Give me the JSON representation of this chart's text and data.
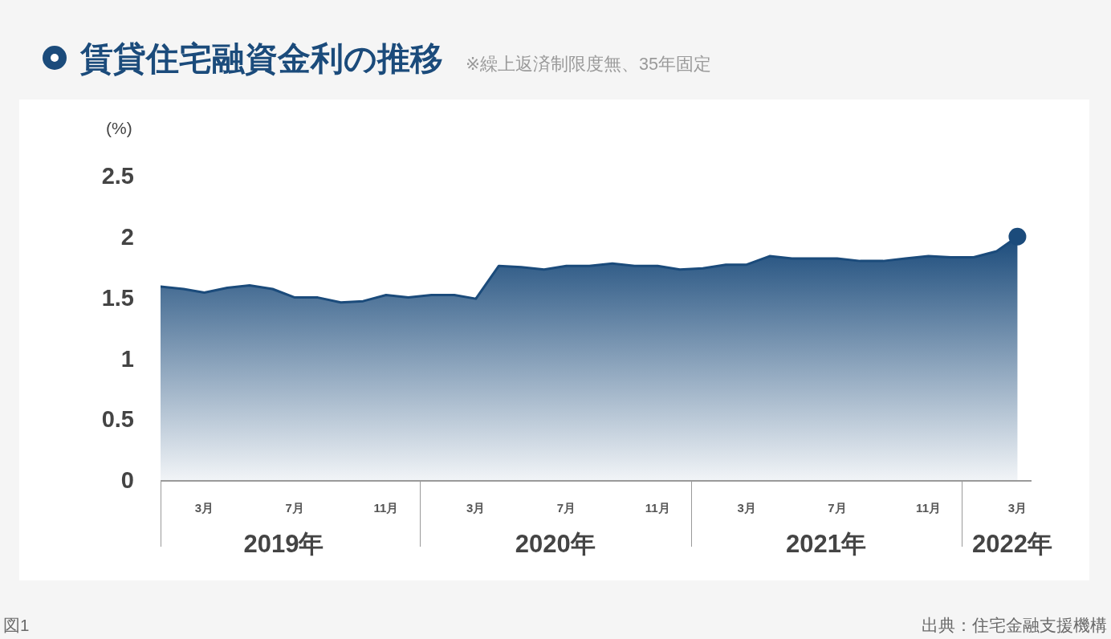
{
  "chart_data": {
    "type": "area",
    "title": "賃貸住宅融資金利の推移",
    "subtitle": "※繰上返済制限度無、35年固定",
    "ylabel": "(%)",
    "annotations": [
      "図1",
      "出典：住宅金融支援機構"
    ],
    "x": [
      "2019-01",
      "2019-02",
      "2019-03",
      "2019-04",
      "2019-05",
      "2019-06",
      "2019-07",
      "2019-08",
      "2019-09",
      "2019-10",
      "2019-11",
      "2019-12",
      "2020-01",
      "2020-02",
      "2020-03",
      "2020-04",
      "2020-05",
      "2020-06",
      "2020-07",
      "2020-08",
      "2020-09",
      "2020-10",
      "2020-11",
      "2020-12",
      "2021-01",
      "2021-02",
      "2021-03",
      "2021-04",
      "2021-05",
      "2021-06",
      "2021-07",
      "2021-08",
      "2021-09",
      "2021-10",
      "2021-11",
      "2021-12",
      "2022-01",
      "2022-02",
      "2022-03"
    ],
    "series": [
      {
        "color": "#1b4b7b",
        "values": [
          1.59,
          1.57,
          1.54,
          1.58,
          1.6,
          1.57,
          1.5,
          1.5,
          1.46,
          1.47,
          1.52,
          1.5,
          1.52,
          1.52,
          1.49,
          1.76,
          1.75,
          1.73,
          1.76,
          1.76,
          1.78,
          1.76,
          1.76,
          1.73,
          1.74,
          1.77,
          1.77,
          1.84,
          1.82,
          1.82,
          1.82,
          1.8,
          1.8,
          1.82,
          1.84,
          1.83,
          1.83,
          1.88,
          2.0
        ]
      },
      {
        "type": "scatter",
        "x": [
          "2022-03"
        ],
        "values": [
          2.0
        ],
        "color": "#1b4b7b",
        "marker": "circle"
      }
    ],
    "xlim": [
      "2019-01-01",
      "2022-03-20"
    ],
    "xticks": [
      {
        "value": "2019-03",
        "label": "3月"
      },
      {
        "value": "2019-07",
        "label": "7月"
      },
      {
        "value": "2019-11",
        "label": "11月"
      },
      {
        "value": "2020-03",
        "label": "3月"
      },
      {
        "value": "2020-07",
        "label": "7月"
      },
      {
        "value": "2020-11",
        "label": "11月"
      },
      {
        "value": "2021-03",
        "label": "3月"
      },
      {
        "value": "2021-07",
        "label": "7月"
      },
      {
        "value": "2021-11",
        "label": "11月"
      },
      {
        "value": "2022-03",
        "label": "3月"
      }
    ],
    "x2lim": [
      "2019-01-01",
      "2022-03-20"
    ],
    "x2ticks": [
      {
        "value": "2019-06-16",
        "label": "2019年"
      },
      {
        "value": "2020-06-16",
        "label": "2020年"
      },
      {
        "value": "2021-06-16",
        "label": "2021年"
      },
      {
        "value": "2022-02-22",
        "label": "2022年"
      }
    ],
    "ylim": [
      0,
      2.5
    ],
    "yticks": [
      0,
      0.5,
      1,
      1.5,
      2,
      2.5
    ]
  }
}
